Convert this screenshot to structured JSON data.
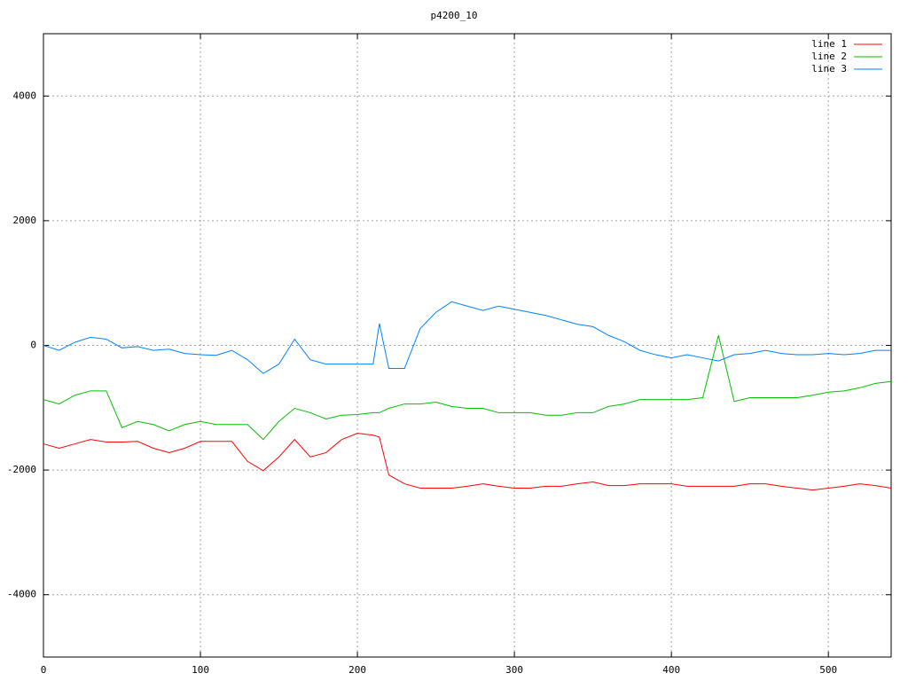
{
  "chart_data": {
    "type": "line",
    "title": "p4200_10",
    "x": [
      0,
      10,
      20,
      30,
      40,
      50,
      60,
      70,
      80,
      90,
      100,
      110,
      120,
      130,
      140,
      150,
      160,
      170,
      180,
      190,
      200,
      210,
      214,
      220,
      230,
      240,
      250,
      260,
      270,
      280,
      290,
      300,
      310,
      320,
      330,
      340,
      350,
      360,
      370,
      380,
      390,
      400,
      410,
      420,
      430,
      440,
      450,
      460,
      470,
      480,
      490,
      500,
      510,
      520,
      530,
      540
    ],
    "series": [
      {
        "name": "line 1",
        "color": "#ff0000",
        "values": [
          -1580,
          -1650,
          -1580,
          -1510,
          -1550,
          -1550,
          -1540,
          -1650,
          -1720,
          -1650,
          -1540,
          -1540,
          -1540,
          -1860,
          -2010,
          -1790,
          -1510,
          -1790,
          -1720,
          -1510,
          -1410,
          -1440,
          -1470,
          -2080,
          -2220,
          -2290,
          -2290,
          -2290,
          -2260,
          -2220,
          -2260,
          -2290,
          -2290,
          -2260,
          -2260,
          -2220,
          -2190,
          -2250,
          -2250,
          -2220,
          -2220,
          -2220,
          -2260,
          -2260,
          -2260,
          -2260,
          -2220,
          -2220,
          -2260,
          -2290,
          -2320,
          -2290,
          -2260,
          -2220,
          -2250,
          -2290
        ]
      },
      {
        "name": "line 2",
        "color": "#00c000",
        "values": [
          -870,
          -940,
          -800,
          -730,
          -730,
          -1320,
          -1220,
          -1270,
          -1370,
          -1270,
          -1220,
          -1270,
          -1270,
          -1270,
          -1510,
          -1220,
          -1010,
          -1080,
          -1180,
          -1120,
          -1110,
          -1080,
          -1080,
          -1010,
          -940,
          -940,
          -910,
          -980,
          -1010,
          -1010,
          -1080,
          -1080,
          -1080,
          -1120,
          -1120,
          -1080,
          -1080,
          -980,
          -940,
          -870,
          -870,
          -870,
          -870,
          -840,
          160,
          -900,
          -840,
          -840,
          -840,
          -840,
          -800,
          -750,
          -730,
          -680,
          -610,
          -580
        ]
      },
      {
        "name": "line 3",
        "color": "#0080ff",
        "values": [
          0,
          -80,
          50,
          130,
          100,
          -40,
          -20,
          -80,
          -60,
          -130,
          -150,
          -160,
          -80,
          -230,
          -450,
          -300,
          100,
          -230,
          -300,
          -300,
          -300,
          -300,
          350,
          -370,
          -370,
          270,
          530,
          700,
          630,
          560,
          630,
          580,
          530,
          480,
          410,
          340,
          300,
          160,
          60,
          -80,
          -150,
          -200,
          -150,
          -200,
          -250,
          -150,
          -130,
          -80,
          -130,
          -150,
          -150,
          -130,
          -150,
          -130,
          -80,
          -80
        ]
      }
    ],
    "xlim": [
      0,
      540
    ],
    "ylim": [
      -5000,
      5000
    ],
    "xticks": [
      0,
      100,
      200,
      300,
      400,
      500
    ],
    "yticks": [
      -4000,
      -2000,
      0,
      2000,
      4000
    ],
    "grid": true,
    "legend": "top-right"
  }
}
